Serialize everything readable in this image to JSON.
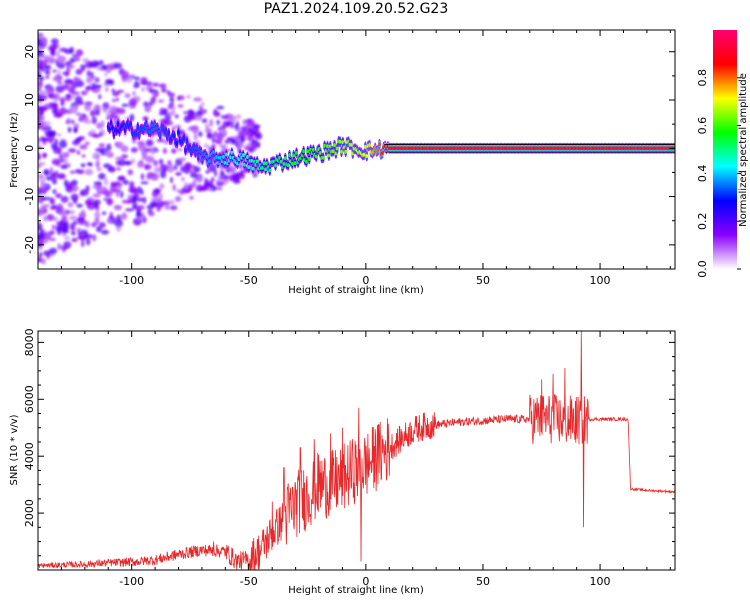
{
  "title": "PAZ1.2024.109.20.52.G23",
  "chart_data": [
    {
      "type": "heatmap",
      "xlabel": "Height of straight line (km)",
      "ylabel": "Frequency (Hz)",
      "xlim": [
        -140,
        132
      ],
      "ylim": [
        -25,
        24.5
      ],
      "xticks": [
        -100,
        -50,
        0,
        50,
        100
      ],
      "yticks": [
        -20,
        -10,
        0,
        10,
        20
      ],
      "colorbar": {
        "label": "Normalized spectral amplitude",
        "range": [
          0,
          1
        ],
        "ticks": [
          "0.0",
          "0.2",
          "0.4",
          "0.6",
          "0.8"
        ],
        "colors": [
          "#ffffff",
          "#8a00ff",
          "#0000ff",
          "#00ffff",
          "#00ff00",
          "#ffff00",
          "#ff0000",
          "#ff0070"
        ]
      },
      "ridge": [
        {
          "x": -105,
          "freq": 4,
          "amp": 0.3
        },
        {
          "x": -90,
          "freq": 4,
          "amp": 0.35
        },
        {
          "x": -80,
          "freq": 2,
          "amp": 0.3
        },
        {
          "x": -70,
          "freq": -2,
          "amp": 0.35
        },
        {
          "x": -55,
          "freq": -2,
          "amp": 0.45
        },
        {
          "x": -45,
          "freq": -4,
          "amp": 0.5
        },
        {
          "x": -30,
          "freq": -2,
          "amp": 0.55
        },
        {
          "x": -20,
          "freq": -1,
          "amp": 0.6
        },
        {
          "x": -10,
          "freq": 0.5,
          "amp": 0.65
        },
        {
          "x": 0,
          "freq": -0.5,
          "amp": 0.7
        },
        {
          "x": 10,
          "freq": 0,
          "amp": 0.9
        },
        {
          "x": 50,
          "freq": 0,
          "amp": 0.92
        },
        {
          "x": 90,
          "freq": 0,
          "amp": 0.9
        },
        {
          "x": 130,
          "freq": 0,
          "amp": 0.95
        }
      ]
    },
    {
      "type": "line",
      "xlabel": "Height of straight line (km)",
      "ylabel": "SNR (10 * v/v)",
      "xlim": [
        -140,
        132
      ],
      "ylim": [
        0,
        8400
      ],
      "xticks": [
        -100,
        -50,
        0,
        50,
        100
      ],
      "yticks": [
        2000,
        4000,
        6000,
        8000
      ],
      "color": "#e8282a",
      "x": [
        -140,
        -130,
        -120,
        -110,
        -100,
        -90,
        -80,
        -70,
        -60,
        -55,
        -50,
        -45,
        -40,
        -35,
        -30,
        -25,
        -20,
        -15,
        -10,
        -5,
        0,
        5,
        10,
        15,
        20,
        25,
        30,
        40,
        50,
        60,
        70,
        75,
        80,
        85,
        90,
        92,
        95,
        100,
        105,
        110,
        112,
        113,
        120,
        132
      ],
      "values": [
        150,
        180,
        200,
        250,
        280,
        350,
        550,
        700,
        650,
        300,
        350,
        700,
        1300,
        1800,
        2300,
        2600,
        3000,
        3000,
        3200,
        3500,
        3700,
        4000,
        4300,
        4600,
        4900,
        5050,
        5100,
        5200,
        5250,
        5300,
        5300,
        5350,
        5300,
        5250,
        5250,
        5250,
        5300,
        5300,
        5300,
        5300,
        5300,
        2850,
        2800,
        2750
      ],
      "spikes": [
        {
          "x": -65,
          "y": 1000
        },
        {
          "x": -40,
          "y": 2400
        },
        {
          "x": -35,
          "y": 3600
        },
        {
          "x": -28,
          "y": 4300
        },
        {
          "x": -22,
          "y": 4600
        },
        {
          "x": -15,
          "y": 4800
        },
        {
          "x": -10,
          "y": 5000
        },
        {
          "x": -3,
          "y": 5700
        },
        {
          "x": -2,
          "y": 300
        },
        {
          "x": 5,
          "y": 5100
        },
        {
          "x": 75,
          "y": 6700
        },
        {
          "x": 80,
          "y": 6900
        },
        {
          "x": 85,
          "y": 7100
        },
        {
          "x": 92,
          "y": 8400
        },
        {
          "x": 93,
          "y": 1500
        }
      ]
    }
  ]
}
